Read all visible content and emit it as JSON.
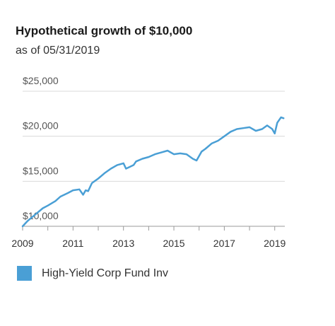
{
  "header": {
    "title": "Hypothetical growth of $10,000",
    "subtitle": "as of 05/31/2019"
  },
  "chart_data": {
    "type": "line",
    "title": "Hypothetical growth of $10,000",
    "subtitle": "as of 05/31/2019",
    "xlabel": "",
    "ylabel": "",
    "xlim": [
      2009,
      2019.4
    ],
    "ylim": [
      10000,
      25000
    ],
    "x_ticks": [
      2009,
      2011,
      2013,
      2015,
      2017,
      2019
    ],
    "x_tick_labels": [
      "2009",
      "2011",
      "2013",
      "2015",
      "2017",
      "2019"
    ],
    "y_ticks": [
      10000,
      15000,
      20000,
      25000
    ],
    "y_tick_labels": [
      "$10,000",
      "$15,000",
      "$20,000",
      "$25,000"
    ],
    "grid": "horizontal",
    "legend": "bottom-left",
    "series": [
      {
        "name": "High-Yield Corp Fund Inv",
        "color": "#4a9fd5",
        "x": [
          2009.0,
          2009.2,
          2009.5,
          2009.8,
          2010.0,
          2010.3,
          2010.5,
          2010.8,
          2011.0,
          2011.25,
          2011.4,
          2011.5,
          2011.6,
          2011.75,
          2012.0,
          2012.25,
          2012.5,
          2012.75,
          2013.0,
          2013.1,
          2013.25,
          2013.4,
          2013.5,
          2013.75,
          2014.0,
          2014.25,
          2014.5,
          2014.75,
          2015.0,
          2015.25,
          2015.5,
          2015.75,
          2015.9,
          2016.1,
          2016.25,
          2016.5,
          2016.75,
          2017.0,
          2017.25,
          2017.5,
          2017.75,
          2018.0,
          2018.25,
          2018.5,
          2018.7,
          2018.9,
          2019.0,
          2019.1,
          2019.25,
          2019.35
        ],
        "y": [
          10000,
          10600,
          11300,
          12000,
          12300,
          12800,
          13300,
          13700,
          14000,
          14100,
          13500,
          14000,
          13900,
          14800,
          15300,
          15900,
          16400,
          16800,
          17000,
          16400,
          16600,
          16800,
          17200,
          17500,
          17700,
          18000,
          18200,
          18400,
          18000,
          18100,
          18000,
          17500,
          17300,
          18300,
          18600,
          19200,
          19500,
          20000,
          20500,
          20800,
          20900,
          21000,
          20600,
          20800,
          21200,
          20800,
          20300,
          21500,
          22100,
          22000
        ]
      }
    ]
  }
}
